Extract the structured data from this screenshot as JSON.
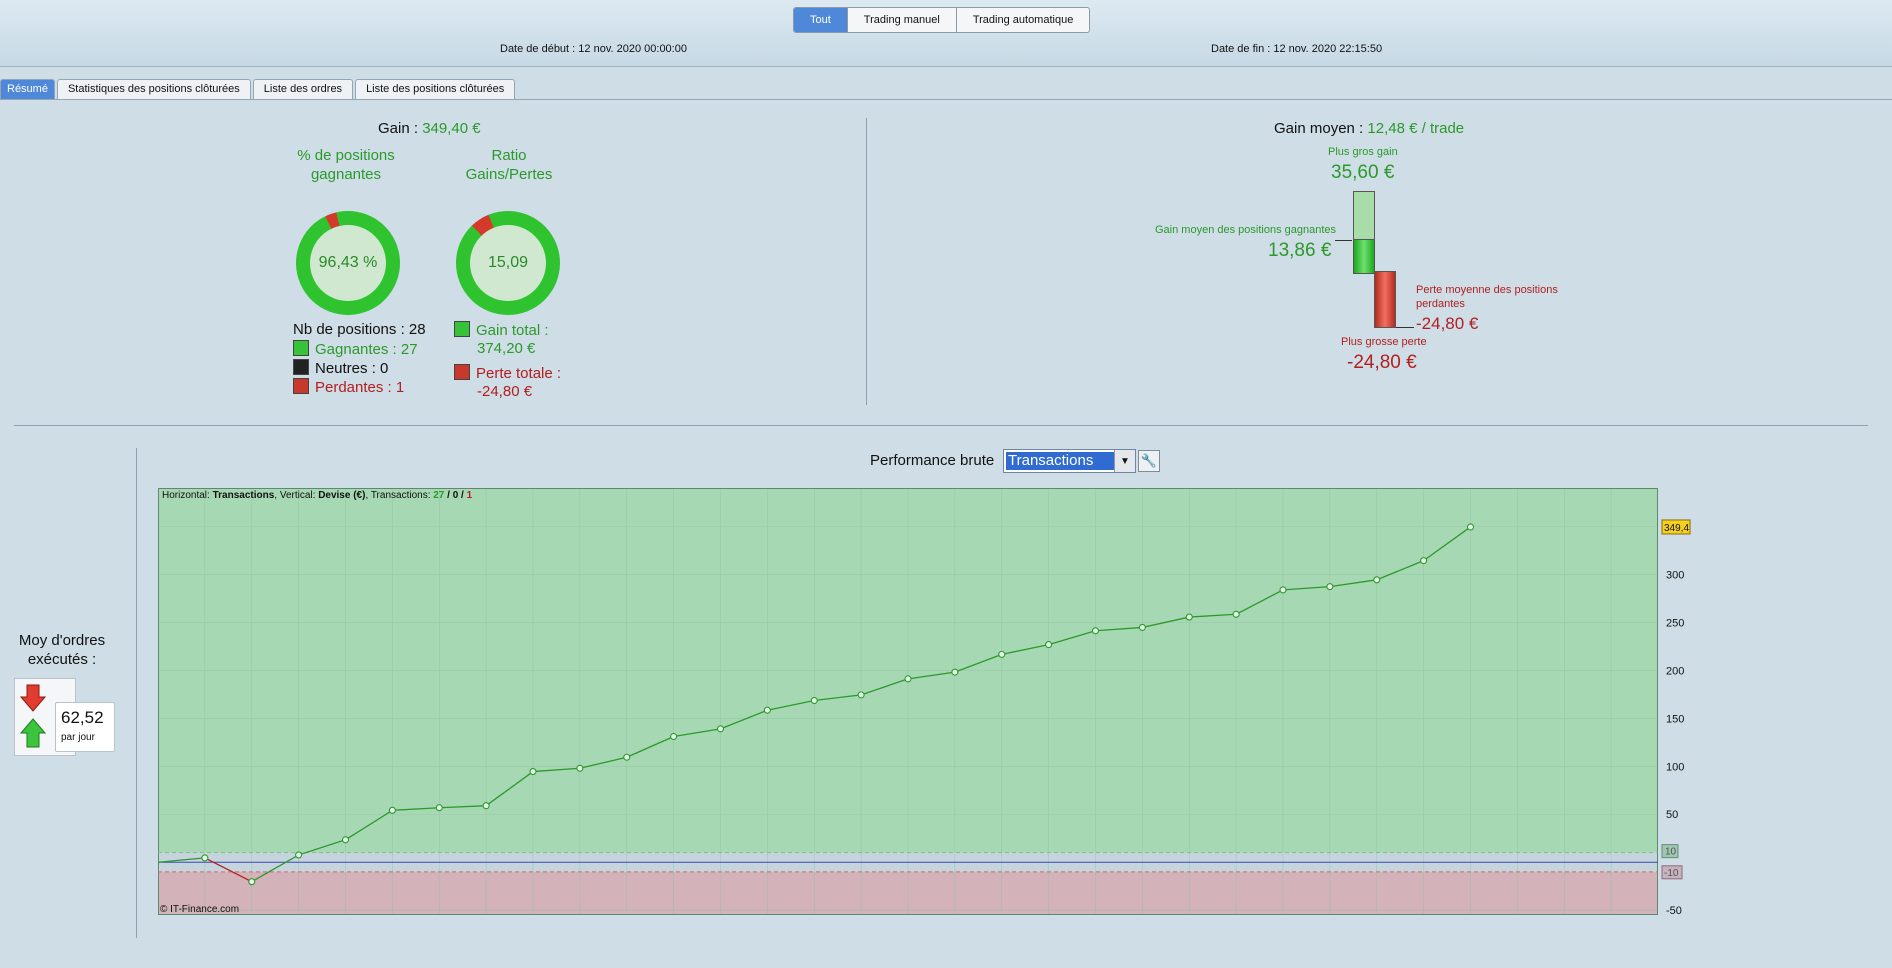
{
  "header": {
    "segments": [
      "Tout",
      "Trading manuel",
      "Trading automatique"
    ],
    "active_segment": "Tout",
    "start_date_label": "Date de début :",
    "start_date": "12 nov. 2020 00:00:00",
    "end_date_label": "Date de fin :",
    "end_date": "12 nov. 2020 22:15:50"
  },
  "tabs": [
    "Résumé",
    "Statistiques des positions clôturées",
    "Liste des ordres",
    "Liste des positions clôturées"
  ],
  "summary": {
    "gain_label": "Gain :",
    "gain_value": "349,40 €",
    "pct_title": "% de positions gagnantes",
    "pct_value": "96,43 %",
    "pct_fraction": 0.9643,
    "ratio_title": "Ratio Gains/Pertes",
    "ratio_value": "15,09",
    "ratio_fraction": 0.9378,
    "nb_positions_label": "Nb de positions : 28",
    "gagnantes": "Gagnantes : 27",
    "neutres": "Neutres : 0",
    "perdantes": "Perdantes : 1",
    "gain_total_label": "Gain total :",
    "gain_total_value": "374,20 €",
    "perte_totale_label": "Perte totale :",
    "perte_totale_value": "-24,80 €"
  },
  "gain_moyen": {
    "label": "Gain moyen :",
    "value": "12,48 € / trade",
    "plus_gros_gain_label": "Plus gros gain",
    "plus_gros_gain_value": "35,60 €",
    "gain_moyen_gagnantes_label": "Gain moyen des positions gagnantes",
    "gain_moyen_gagnantes_value": "13,86 €",
    "perte_moyenne_label_1": "Perte moyenne des positions",
    "perte_moyenne_label_2": "perdantes",
    "perte_moyenne_value": "-24,80 €",
    "plus_grosse_perte_label": "Plus grosse perte",
    "plus_grosse_perte_value": "-24,80 €"
  },
  "orders": {
    "title_1": "Moy d'ordres",
    "title_2": "exécutés :",
    "value": "62,52",
    "unit": "par jour"
  },
  "performance": {
    "label": "Performance brute",
    "select_value": "Transactions",
    "info_prefix": "Horizontal: ",
    "info_h": "Transactions",
    "info_mid": ", Vertical: ",
    "info_v": "Devise (€)",
    "info_mid2": ", Transactions: ",
    "info_w": "27",
    "info_sep1": " / ",
    "info_n": "0",
    "info_sep2": " / ",
    "info_l": "1",
    "copyright": "© IT-Finance.com",
    "last_value_tag": "349,4",
    "upper_band_tag": "10",
    "lower_band_tag": "-10"
  },
  "chart_data": {
    "type": "line",
    "x": [
      0,
      1,
      2,
      3,
      4,
      5,
      6,
      7,
      8,
      9,
      10,
      11,
      12,
      13,
      14,
      15,
      16,
      17,
      18,
      19,
      20,
      21,
      22,
      23,
      24,
      25,
      26,
      27,
      28
    ],
    "y": [
      0,
      4.5,
      -20.3,
      7.6,
      23.4,
      54.1,
      56.8,
      58.9,
      94.5,
      97.9,
      109.4,
      131.0,
      139.0,
      158.4,
      168.5,
      174.4,
      191.1,
      198.1,
      216.6,
      226.8,
      241.2,
      244.7,
      255.5,
      258.4,
      283.8,
      287.2,
      294.3,
      314.3,
      349.4
    ],
    "xlim": [
      0,
      32
    ],
    "ylim": [
      -55,
      390
    ],
    "x_ticks": [
      "2",
      "4",
      "6",
      "8",
      "10",
      "12",
      "14",
      "16",
      "18",
      "20",
      "22",
      "24",
      "26",
      "28",
      "30"
    ],
    "y_ticks": [
      "300",
      "250",
      "200",
      "150",
      "100",
      "50",
      "-50"
    ],
    "bands": [
      10,
      -10
    ],
    "colors": {
      "positive_zone": "#a7d8b4",
      "negative_zone": "#d3b3b9",
      "line_gain": "#2a9a2a",
      "line_loss": "#b21f1f"
    }
  }
}
